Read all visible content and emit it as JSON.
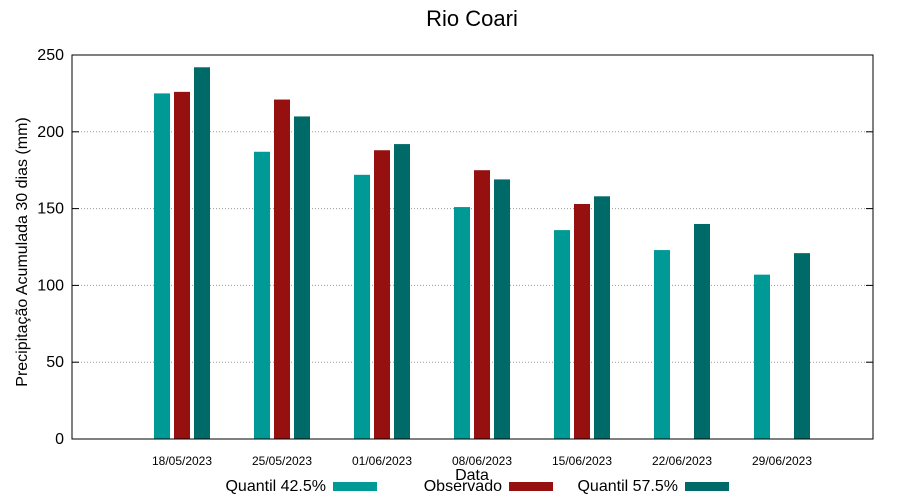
{
  "chart_data": {
    "type": "bar",
    "title": "Rio Coari",
    "xlabel": "Data",
    "ylabel": "Precipitação Acumulada 30 dias (mm)",
    "ylim": [
      0,
      250
    ],
    "yticks": [
      0,
      50,
      100,
      150,
      200,
      250
    ],
    "grid": true,
    "legend_position": "bottom",
    "categories": [
      "18/05/2023",
      "25/05/2023",
      "01/06/2023",
      "08/06/2023",
      "15/06/2023",
      "22/06/2023",
      "29/06/2023"
    ],
    "series": [
      {
        "name": "Quantil 42.5%",
        "color": "#009a96",
        "values": [
          225,
          187,
          172,
          151,
          136,
          123,
          107
        ]
      },
      {
        "name": "Observado",
        "color": "#961010",
        "values": [
          226,
          221,
          188,
          175,
          153,
          null,
          null
        ]
      },
      {
        "name": "Quantil 57.5%",
        "color": "#006a68",
        "values": [
          242,
          210,
          192,
          169,
          158,
          140,
          121
        ]
      }
    ]
  }
}
